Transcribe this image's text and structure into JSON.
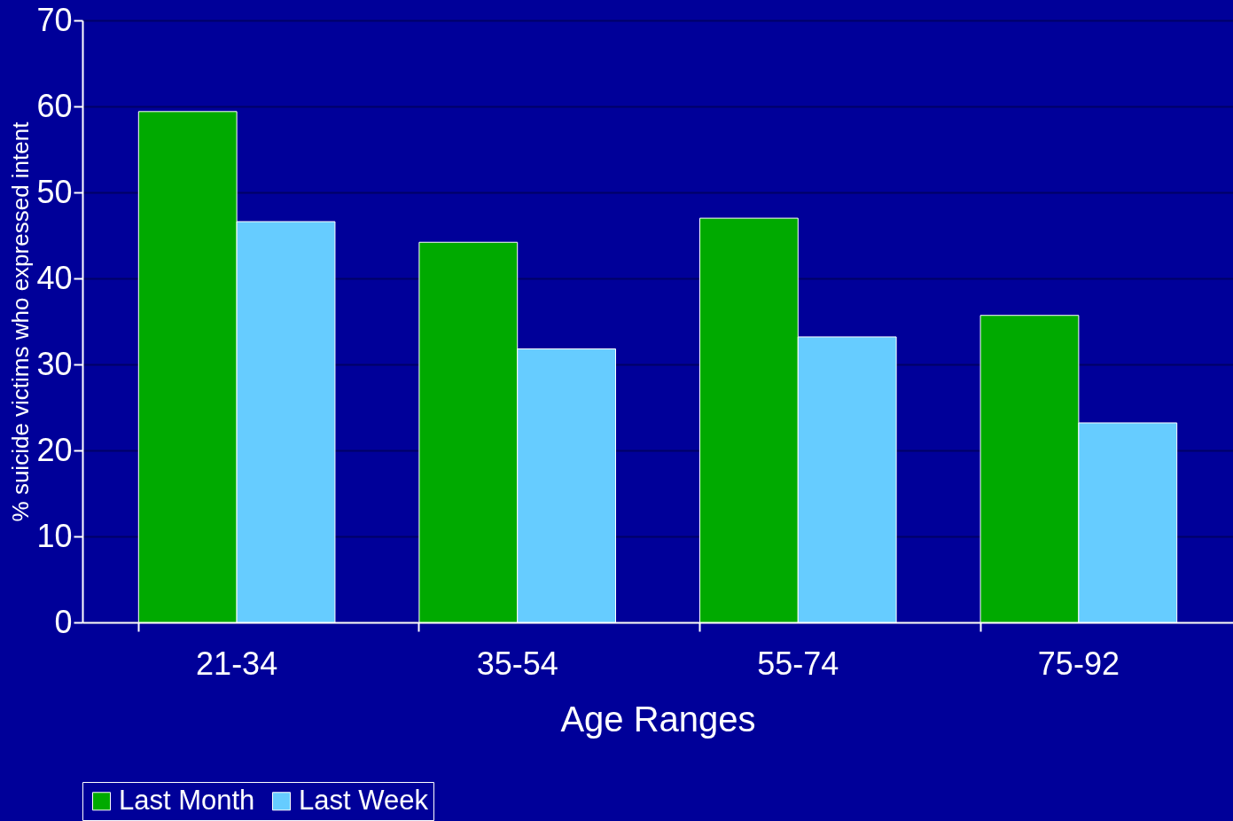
{
  "chart_data": {
    "type": "bar",
    "xlabel": "Age Ranges",
    "ylabel": "% suicide victims who expressed intent",
    "categories": [
      "21-34",
      "35-54",
      "55-74",
      "75-92"
    ],
    "series": [
      {
        "name": "Last Month",
        "color": "#00aa00",
        "values": [
          59.4,
          44.2,
          47.0,
          35.7
        ]
      },
      {
        "name": "Last Week",
        "color": "#66ccff",
        "values": [
          46.6,
          31.8,
          33.2,
          23.2
        ]
      }
    ],
    "ylim": [
      0,
      70
    ],
    "yticks": [
      0,
      10,
      20,
      30,
      40,
      50,
      60,
      70
    ],
    "grid": "y",
    "legend": "bottom"
  }
}
